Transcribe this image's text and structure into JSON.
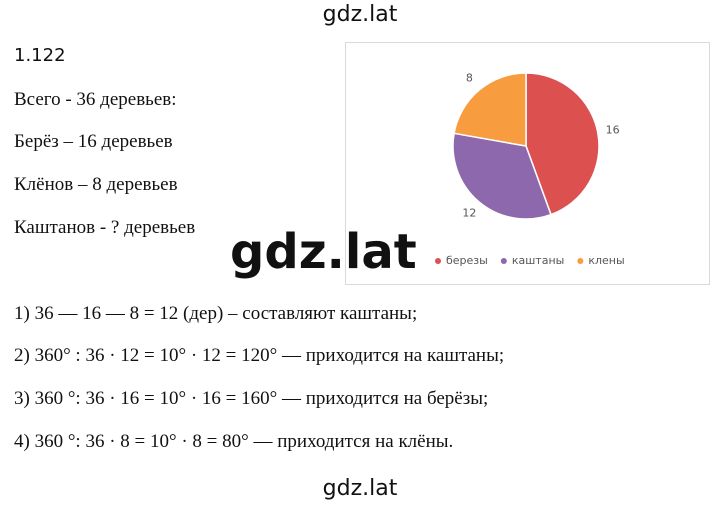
{
  "header": {
    "watermark": "gdz.lat"
  },
  "problem": {
    "number": "1.122",
    "given": [
      "Всего - 36 деревьев:",
      "Берёз – 16 деревьев",
      "Клёнов – 8 деревьев",
      "Каштанов - ? деревьев"
    ],
    "watermark": "gdz.lat",
    "solution": [
      "1) 36 — 16 — 8 = 12 (дер) – составляют каштаны;",
      "2) 360° : 36 · 12 = 10° · 12 = 120° — приходится на каштаны;",
      "3) 360 °: 36 · 16 = 10° · 16 = 160° — приходится на берёзы;",
      "4) 360 °: 36 · 8 = 10° · 8 = 80° — приходится на клёны."
    ]
  },
  "chart_data": {
    "type": "pie",
    "categories": [
      "березы",
      "каштаны",
      "клены"
    ],
    "values": [
      16,
      12,
      8
    ],
    "colors": [
      "#dc5050",
      "#8e68ad",
      "#f89d3f"
    ],
    "legend": "bottom"
  },
  "footer": {
    "watermark": "gdz.lat"
  }
}
